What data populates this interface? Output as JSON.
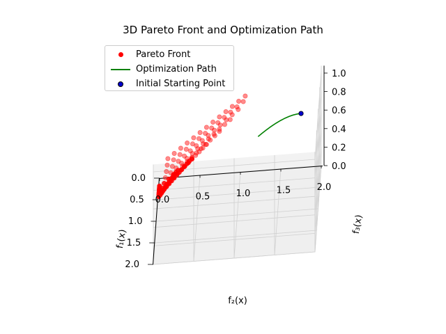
{
  "chart_data": {
    "type": "scatter",
    "title": "3D Pareto Front and Optimization Path",
    "x_axis": {
      "label": "f₂(x)",
      "ticks": [
        "0.0",
        "0.5",
        "1.0",
        "1.5",
        "2.0"
      ],
      "range": [
        0,
        2
      ]
    },
    "y_axis": {
      "label": "f₁(x)",
      "ticks": [
        "0.0",
        "0.5",
        "1.0",
        "1.5",
        "2.0"
      ],
      "range": [
        0,
        2
      ]
    },
    "z_axis": {
      "label": "f₃(x)",
      "ticks": [
        "0.0",
        "0.2",
        "0.4",
        "0.6",
        "0.8",
        "1.0"
      ],
      "range": [
        0,
        1
      ]
    },
    "legend_position": "top-left",
    "grid": true,
    "series": [
      {
        "name": "Pareto Front",
        "kind": "scatter",
        "color": "#ff0000"
      },
      {
        "name": "Optimization Path",
        "kind": "line",
        "color": "#008000"
      },
      {
        "name": "Initial Starting Point",
        "kind": "point",
        "color": "#0000cc",
        "edge_color": "#000000"
      }
    ]
  }
}
